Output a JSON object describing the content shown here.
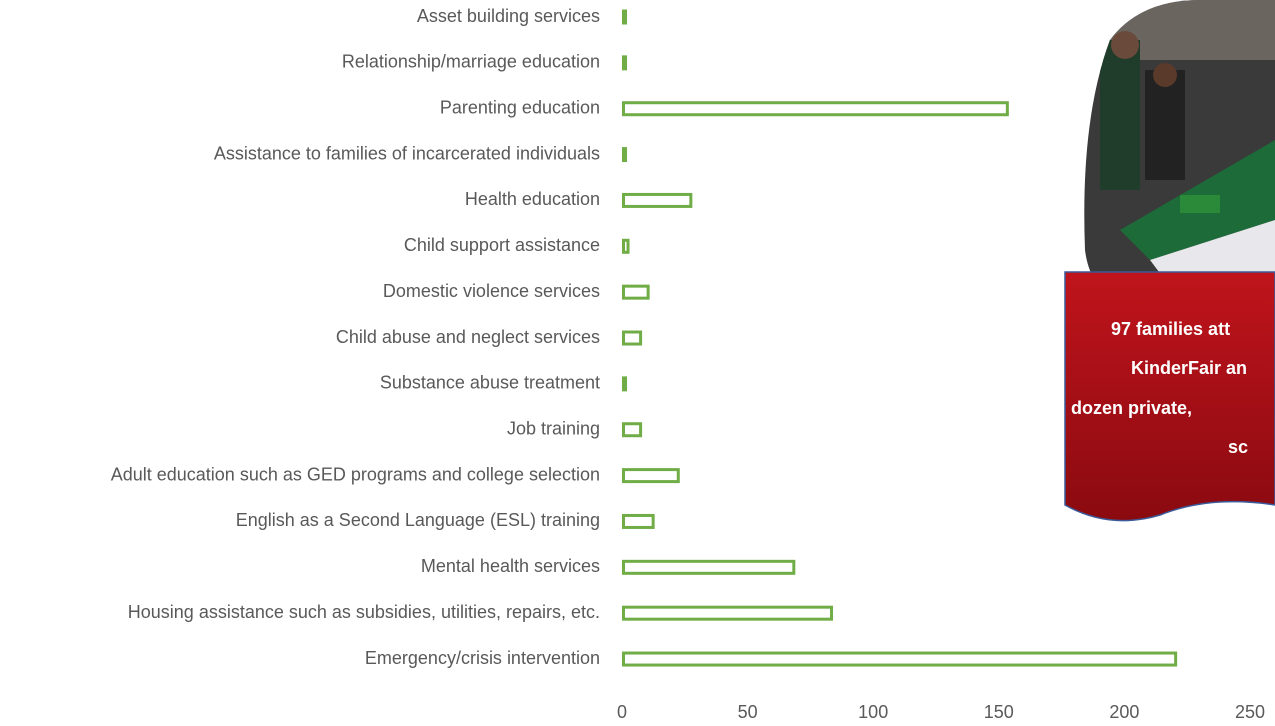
{
  "chart_data": {
    "type": "bar",
    "orientation": "horizontal",
    "categories": [
      "Asset building services",
      "Relationship/marriage education",
      "Parenting education",
      "Assistance to families of incarcerated individuals",
      "Health education",
      "Child support assistance",
      "Domestic violence services",
      "Child abuse and neglect services",
      "Substance abuse treatment",
      "Job training",
      "Adult education such as GED programs and college selection",
      "English as a Second Language (ESL) training",
      "Mental health services",
      "Housing assistance such as subsidies, utilities, repairs, etc.",
      "Emergency/crisis intervention"
    ],
    "values": [
      2,
      2,
      154,
      2,
      28,
      3,
      11,
      8,
      2,
      8,
      23,
      13,
      69,
      84,
      221
    ],
    "color": "#70ad47",
    "xlim": [
      0,
      250
    ],
    "xticks": [
      0,
      50,
      100,
      150,
      200,
      250
    ],
    "annotation": [
      "97 families att",
      "KinderFair an",
      "dozen private,",
      "sc"
    ]
  }
}
